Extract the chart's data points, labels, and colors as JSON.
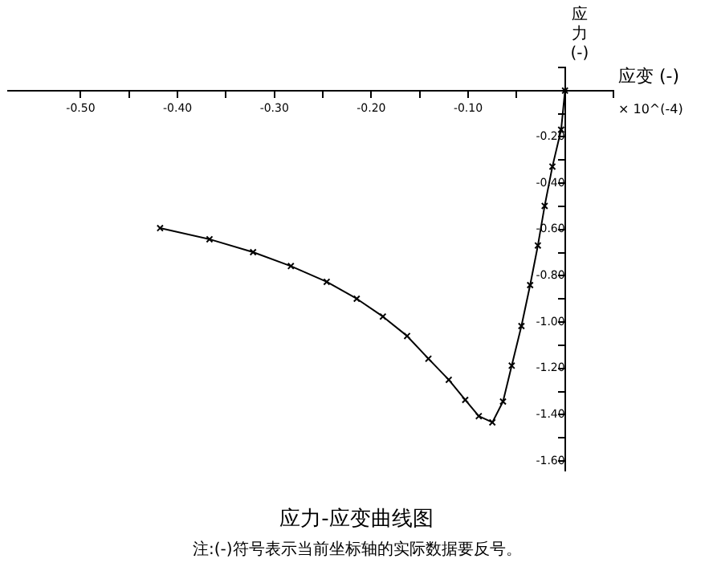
{
  "chart_data": {
    "type": "line",
    "title": "应力-应变曲线图",
    "xlabel": "应变 (-)",
    "ylabel": "应力 (-)",
    "annotations": [
      "× 10^(-4)",
      "注:(-)符号表示当前坐标轴的实际数据要反号。"
    ],
    "x": [
      -0.418,
      -0.367,
      -0.322,
      -0.283,
      -0.246,
      -0.215,
      -0.188,
      -0.163,
      -0.141,
      -0.12,
      -0.103,
      -0.089,
      -0.075,
      -0.064,
      -0.055,
      -0.045,
      -0.036,
      -0.028,
      -0.021,
      -0.013,
      -0.004,
      0
    ],
    "series": [
      {
        "color": "#000000",
        "values": [
          -0.594,
          -0.642,
          -0.698,
          -0.758,
          -0.826,
          -0.899,
          -0.976,
          -1.06,
          -1.158,
          -1.249,
          -1.336,
          -1.406,
          -1.433,
          -1.343,
          -1.188,
          -1.017,
          -0.84,
          -0.669,
          -0.498,
          -0.328,
          -0.169,
          0
        ]
      }
    ],
    "xlim": [
      -0.575,
      0.05
    ],
    "xticks": [
      {
        "value": -0.5,
        "label": "-0.50"
      },
      {
        "value": -0.45,
        "label": null
      },
      {
        "value": -0.4,
        "label": "-0.40"
      },
      {
        "value": -0.35,
        "label": null
      },
      {
        "value": -0.3,
        "label": "-0.30"
      },
      {
        "value": -0.25,
        "label": null
      },
      {
        "value": -0.2,
        "label": "-0.20"
      },
      {
        "value": -0.15,
        "label": null
      },
      {
        "value": -0.1,
        "label": "-0.10"
      },
      {
        "value": -0.05,
        "label": null
      },
      {
        "value": 0.05,
        "label": null
      }
    ],
    "ylim": [
      -1.64,
      0.1
    ],
    "yticks": [
      {
        "value": 0.1,
        "label": null
      },
      {
        "value": -0.1,
        "label": null
      },
      {
        "value": -0.2,
        "label": "-0.20"
      },
      {
        "value": -0.3,
        "label": null
      },
      {
        "value": -0.4,
        "label": "-0.40"
      },
      {
        "value": -0.5,
        "label": null
      },
      {
        "value": -0.6,
        "label": "-0.60"
      },
      {
        "value": -0.7,
        "label": null
      },
      {
        "value": -0.8,
        "label": "-0.80"
      },
      {
        "value": -0.9,
        "label": null
      },
      {
        "value": -1.0,
        "label": "-1.00"
      },
      {
        "value": -1.1,
        "label": null
      },
      {
        "value": -1.2,
        "label": "-1.20"
      },
      {
        "value": -1.3,
        "label": null
      },
      {
        "value": -1.4,
        "label": "-1.40"
      },
      {
        "value": -1.5,
        "label": null
      },
      {
        "value": -1.6,
        "label": "-1.60"
      }
    ],
    "grid": false,
    "legend": false,
    "marker": "cross",
    "line_style": "solid"
  }
}
